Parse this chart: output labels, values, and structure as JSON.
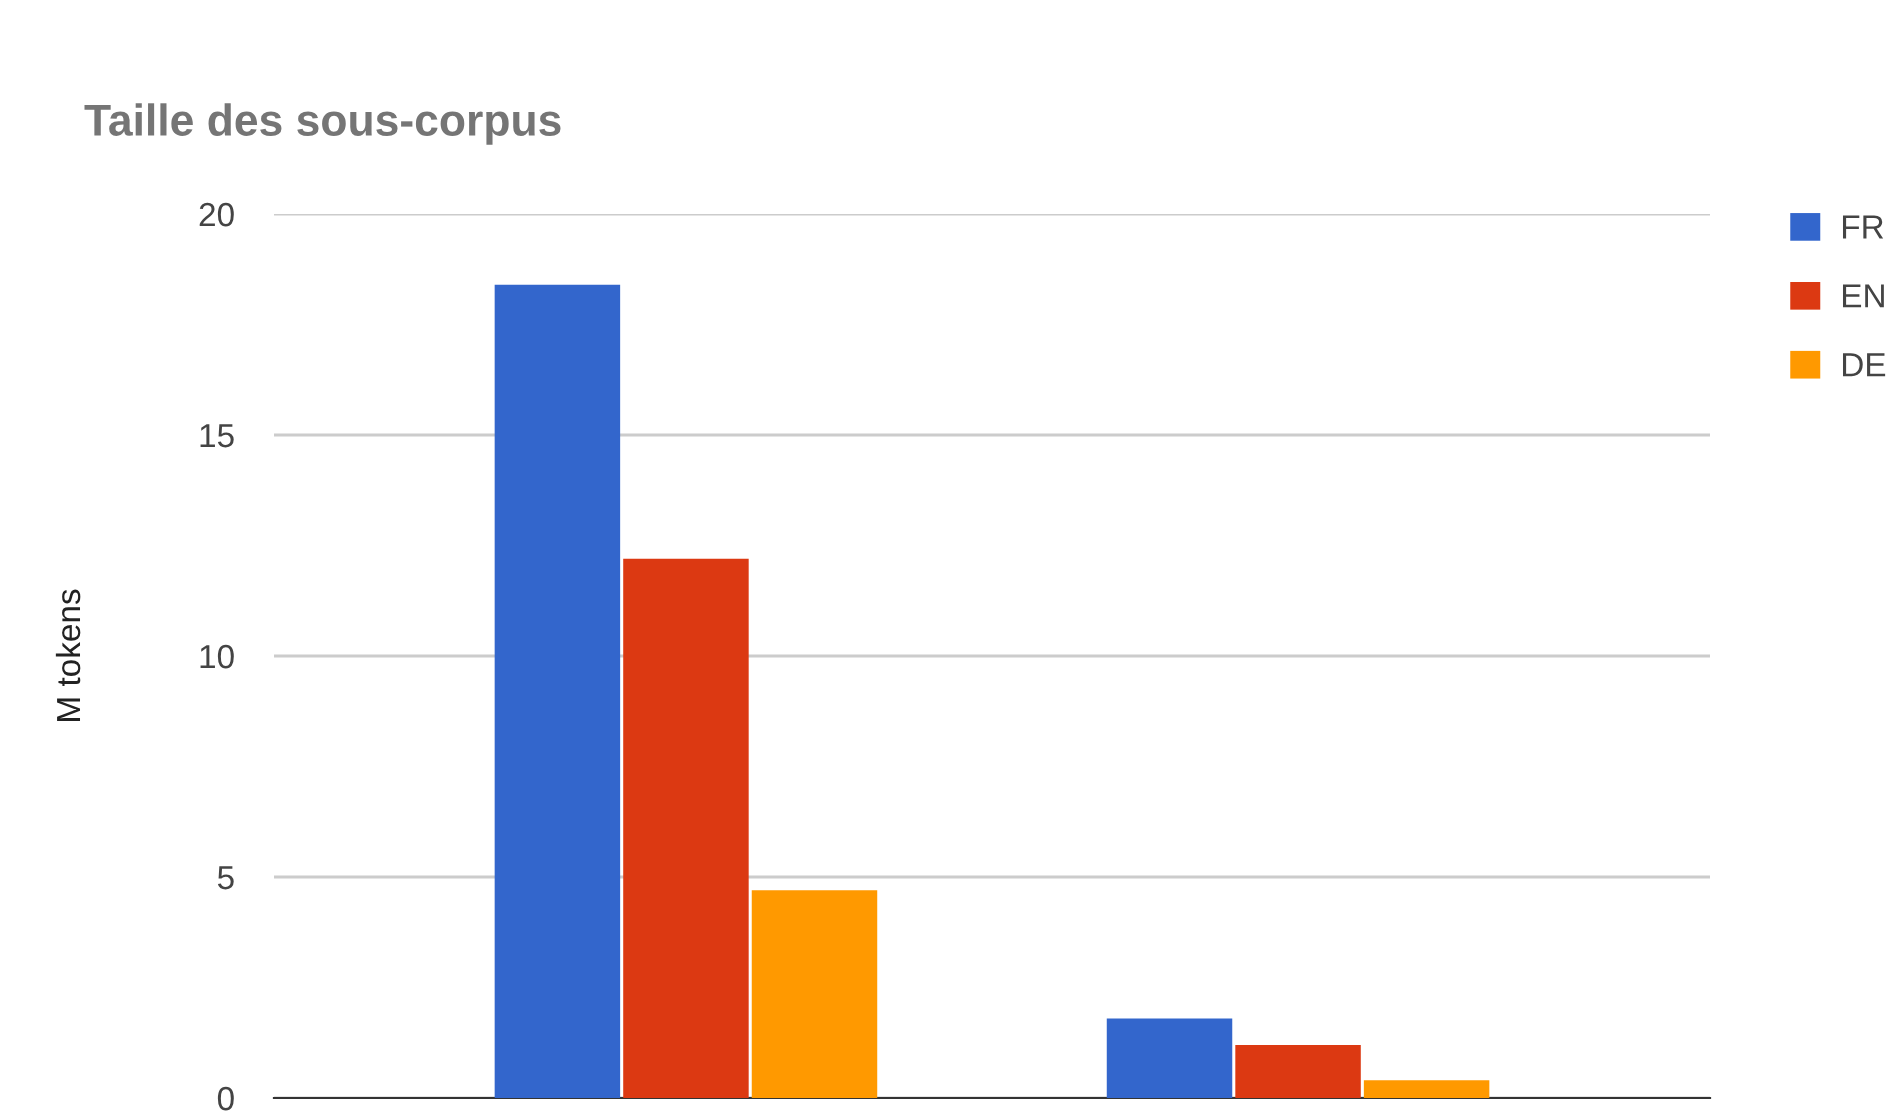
{
  "chart_data": {
    "type": "bar",
    "title": "Taille des sous-corpus",
    "ylabel": "M tokens",
    "categories": [
      null,
      null
    ],
    "series": [
      {
        "name": "FR",
        "color": "#3366cc",
        "values": [
          18.4,
          1.8
        ]
      },
      {
        "name": "EN",
        "color": "#dc3912",
        "values": [
          12.2,
          1.2
        ]
      },
      {
        "name": "DE",
        "color": "#ff9900",
        "values": [
          4.7,
          0.4
        ]
      }
    ],
    "ylim": [
      0,
      20
    ],
    "yticks": [
      0,
      5,
      10,
      15,
      20
    ],
    "grid": "y",
    "legend": "top right",
    "tick_labels": "y"
  }
}
